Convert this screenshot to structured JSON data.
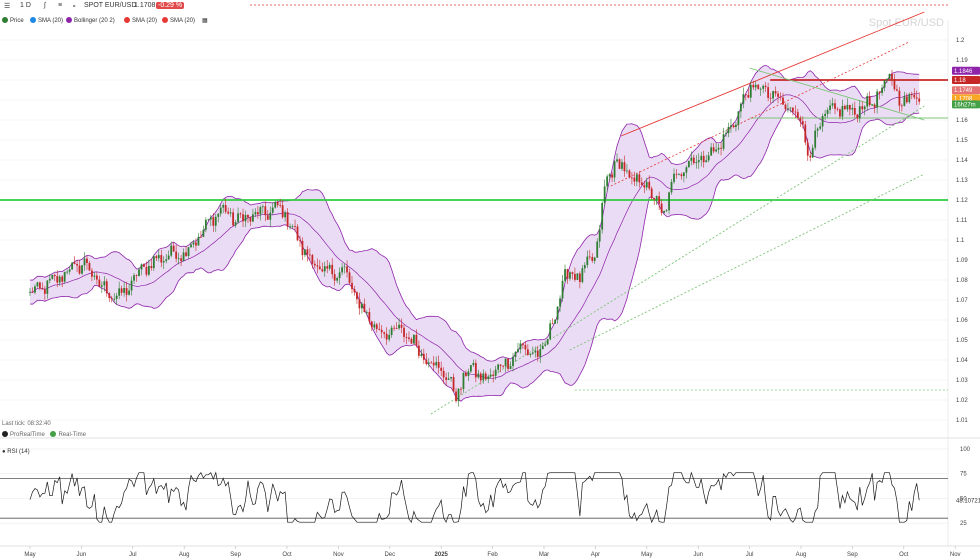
{
  "toolbar": {
    "timeframe": "1 D",
    "instrument": "SPOT EUR/USD",
    "last_price": "1.1708",
    "change": "-0.29 %"
  },
  "legend": {
    "items": [
      {
        "label": "Price",
        "color": "#2e7d32"
      },
      {
        "label": "SMA (20)",
        "color": "#1e88e5"
      },
      {
        "label": "Bollinger (20 2)",
        "color": "#8e24aa"
      },
      {
        "label": "SMA (20)",
        "color": "#e53935"
      },
      {
        "label": "SMA (20)",
        "color": "#e53935"
      }
    ]
  },
  "watermark": "Spot EUR/USD",
  "footer": {
    "last_tick": "Last tick: 08:32:40",
    "brand": "ProRealTime",
    "realtime": "Real-Time"
  },
  "price_badges": [
    {
      "label": "1.1846",
      "value": 1.1846,
      "color": "#8e24aa"
    },
    {
      "label": "1.18",
      "value": 1.18,
      "color": "#c62828"
    },
    {
      "label": "1.1749",
      "value": 1.1749,
      "color": "#e57373"
    },
    {
      "label": "1.1708",
      "value": 1.1708,
      "color": "#f9a825"
    },
    {
      "label": "16h27m",
      "value": 1.1678,
      "color": "#43a047"
    }
  ],
  "chart_data": {
    "type": "line",
    "colors": {
      "up": "#2e7d32",
      "down": "#c62828",
      "band": "#8e24aa",
      "band_fill": "#e8d6f3",
      "support": "#2ecc40",
      "resistance": "#c62828",
      "channel_top": "#e53935",
      "channel_mid": "#e53935",
      "trend": "#7cc576"
    },
    "x_ticks": [
      "May",
      "Jun",
      "Jul",
      "Aug",
      "Sep",
      "Oct",
      "Nov",
      "Dec",
      "2025",
      "Feb",
      "Mar",
      "Apr",
      "May",
      "Jun",
      "Jul",
      "Aug",
      "Sep",
      "Oct",
      "Nov"
    ],
    "price_panel": {
      "y_range": [
        1.005,
        1.205
      ],
      "y_ticks": [
        "1.2",
        "1.19",
        "1.18",
        "1.17",
        "1.16",
        "1.15",
        "1.14",
        "1.13",
        "1.12",
        "1.11",
        "1.1",
        "1.09",
        "1.08",
        "1.07",
        "1.06",
        "1.05",
        "1.04",
        "1.03",
        "1.02",
        "1.01"
      ],
      "anchors": [
        {
          "m": 0,
          "v": 1.073
        },
        {
          "m": 0.4,
          "v": 1.078
        },
        {
          "m": 0.8,
          "v": 1.086
        },
        {
          "m": 1.1,
          "v": 1.088
        },
        {
          "m": 1.35,
          "v": 1.077
        },
        {
          "m": 1.75,
          "v": 1.071
        },
        {
          "m": 2.2,
          "v": 1.086
        },
        {
          "m": 2.6,
          "v": 1.092
        },
        {
          "m": 3.0,
          "v": 1.094
        },
        {
          "m": 3.3,
          "v": 1.102
        },
        {
          "m": 3.7,
          "v": 1.116
        },
        {
          "m": 4.0,
          "v": 1.11
        },
        {
          "m": 4.5,
          "v": 1.113
        },
        {
          "m": 4.9,
          "v": 1.116
        },
        {
          "m": 5.3,
          "v": 1.096
        },
        {
          "m": 5.7,
          "v": 1.083
        },
        {
          "m": 6.1,
          "v": 1.085
        },
        {
          "m": 6.4,
          "v": 1.068
        },
        {
          "m": 6.8,
          "v": 1.054
        },
        {
          "m": 7.3,
          "v": 1.054
        },
        {
          "m": 7.6,
          "v": 1.044
        },
        {
          "m": 8.0,
          "v": 1.035
        },
        {
          "m": 8.3,
          "v": 1.023
        },
        {
          "m": 8.6,
          "v": 1.038
        },
        {
          "m": 8.8,
          "v": 1.029
        },
        {
          "m": 9.3,
          "v": 1.04
        },
        {
          "m": 9.6,
          "v": 1.047
        },
        {
          "m": 9.9,
          "v": 1.041
        },
        {
          "m": 10.2,
          "v": 1.06
        },
        {
          "m": 10.4,
          "v": 1.083
        },
        {
          "m": 10.7,
          "v": 1.082
        },
        {
          "m": 11.0,
          "v": 1.092
        },
        {
          "m": 11.2,
          "v": 1.128
        },
        {
          "m": 11.4,
          "v": 1.14
        },
        {
          "m": 11.7,
          "v": 1.13
        },
        {
          "m": 12.0,
          "v": 1.128
        },
        {
          "m": 12.3,
          "v": 1.112
        },
        {
          "m": 12.6,
          "v": 1.135
        },
        {
          "m": 12.9,
          "v": 1.14
        },
        {
          "m": 13.2,
          "v": 1.142
        },
        {
          "m": 13.5,
          "v": 1.15
        },
        {
          "m": 13.8,
          "v": 1.165
        },
        {
          "m": 14.0,
          "v": 1.176
        },
        {
          "m": 14.2,
          "v": 1.176
        },
        {
          "m": 14.5,
          "v": 1.171
        },
        {
          "m": 14.8,
          "v": 1.165
        },
        {
          "m": 15.0,
          "v": 1.162
        },
        {
          "m": 15.15,
          "v": 1.141
        },
        {
          "m": 15.4,
          "v": 1.16
        },
        {
          "m": 15.7,
          "v": 1.166
        },
        {
          "m": 16.0,
          "v": 1.164
        },
        {
          "m": 16.3,
          "v": 1.168
        },
        {
          "m": 16.6,
          "v": 1.174
        },
        {
          "m": 16.75,
          "v": 1.185
        },
        {
          "m": 16.9,
          "v": 1.168
        },
        {
          "m": 17.1,
          "v": 1.172
        },
        {
          "m": 17.3,
          "v": 1.171
        }
      ],
      "support_level": 1.12,
      "resistance_level": 1.18,
      "resistance_from_month": 14.4,
      "channel_top_line": [
        {
          "m": 11.5,
          "v": 1.152
        },
        {
          "m": 17.4,
          "v": 1.214
        }
      ],
      "channel_mid_line": [
        {
          "m": 11.3,
          "v": 1.127
        },
        {
          "m": 17.1,
          "v": 1.199
        }
      ],
      "channel_bottom_line": [
        {
          "m": 7.8,
          "v": 1.013
        },
        {
          "m": 17.4,
          "v": 1.167
        }
      ],
      "lower_trend_line": [
        {
          "m": 10.5,
          "v": 1.045
        },
        {
          "m": 17.4,
          "v": 1.133
        }
      ],
      "flat_level_1": 1.025,
      "flat_level_1_from_month": 10.6,
      "flat_level_2": 1.161,
      "flat_level_2_from_month": 14.0,
      "wedge_line": [
        {
          "m": 14.0,
          "v": 1.186
        },
        {
          "m": 17.4,
          "v": 1.16
        }
      ]
    },
    "rsi_panel": {
      "label": "RSI (14)",
      "y_range": [
        10,
        105
      ],
      "y_ticks": [
        "100",
        "75",
        "50",
        "25"
      ],
      "levels": [
        70,
        30
      ],
      "current_value": 48.1,
      "current_label": "48.10721"
    }
  }
}
